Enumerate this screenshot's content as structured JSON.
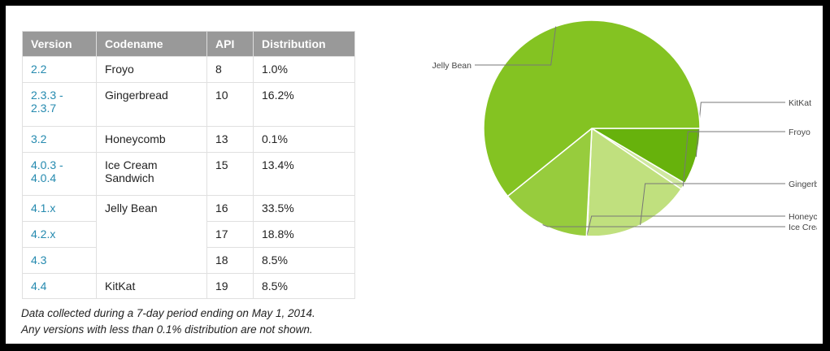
{
  "table": {
    "headers": [
      "Version",
      "Codename",
      "API",
      "Distribution"
    ],
    "rows": [
      {
        "version": "2.2",
        "codename": "Froyo",
        "api": "8",
        "distribution": "1.0%"
      },
      {
        "version": "2.3.3 - 2.3.7",
        "codename": "Gingerbread",
        "api": "10",
        "distribution": "16.2%"
      },
      {
        "version": "3.2",
        "codename": "Honeycomb",
        "api": "13",
        "distribution": "0.1%"
      },
      {
        "version": "4.0.3 - 4.0.4",
        "codename": "Ice Cream Sandwich",
        "api": "15",
        "distribution": "13.4%"
      },
      {
        "version": "4.1.x",
        "codename": "Jelly Bean",
        "api": "16",
        "distribution": "33.5%"
      },
      {
        "version": "4.2.x",
        "codename": "",
        "api": "17",
        "distribution": "18.8%"
      },
      {
        "version": "4.3",
        "codename": "",
        "api": "18",
        "distribution": "8.5%"
      },
      {
        "version": "4.4",
        "codename": "KitKat",
        "api": "19",
        "distribution": "8.5%"
      }
    ]
  },
  "note": {
    "line1": "Data collected during a 7-day period ending on May 1, 2014.",
    "line2": "Any versions with less than 0.1% distribution are not shown."
  },
  "chart_data": {
    "type": "pie",
    "title": "",
    "start_angle_deg": 0,
    "slices": [
      {
        "label": "KitKat",
        "value": 8.5,
        "color": "#67b20c"
      },
      {
        "label": "Froyo",
        "value": 1.0,
        "color": "#cfe8a0"
      },
      {
        "label": "Gingerbread",
        "value": 16.2,
        "color": "#c0e07e"
      },
      {
        "label": "Honeycomb",
        "value": 0.1,
        "color": "#b0d86a"
      },
      {
        "label": "Ice Cream Sandwich",
        "value": 13.4,
        "color": "#97cc3d"
      },
      {
        "label": "Jelly Bean",
        "value": 60.8,
        "color": "#84c322"
      }
    ]
  }
}
